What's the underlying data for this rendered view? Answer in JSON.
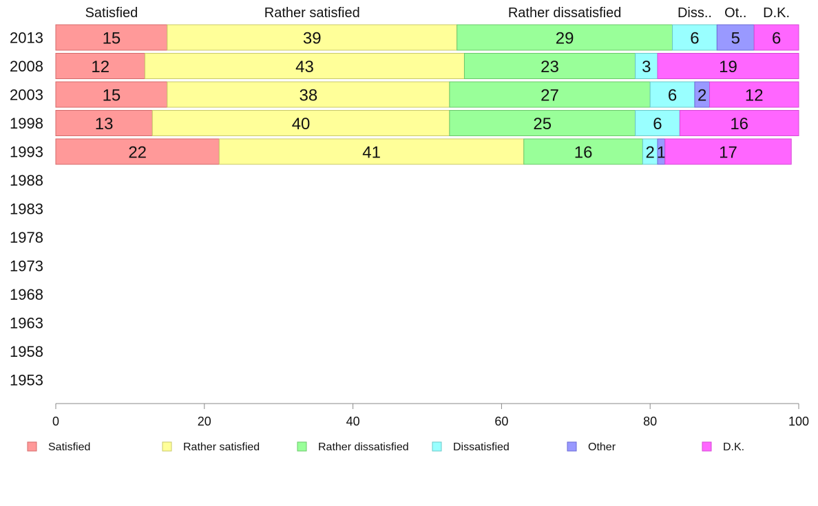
{
  "chart_data": {
    "type": "bar",
    "orientation": "horizontal-stacked-percent",
    "title": "",
    "xlabel": "",
    "ylabel": "",
    "xlim": [
      0,
      100
    ],
    "x_ticks": [
      "0",
      "20",
      "40",
      "60",
      "80",
      "100"
    ],
    "categories": [
      "2013",
      "2008",
      "2003",
      "1998",
      "1993",
      "1988",
      "1983",
      "1978",
      "1973",
      "1968",
      "1963",
      "1958",
      "1953"
    ],
    "column_headers": [
      "Satisfied",
      "Rather satisfied",
      "Rather dissatisfied",
      "Diss..",
      "Ot..",
      "D.K."
    ],
    "legend_position": "bottom",
    "grid": false,
    "series": [
      {
        "name": "Satisfied",
        "color": "#ff9999",
        "stroke": "#d46a6a",
        "values": [
          15,
          12,
          15,
          13,
          22,
          null,
          null,
          null,
          null,
          null,
          null,
          null,
          null
        ]
      },
      {
        "name": "Rather satisfied",
        "color": "#ffff99",
        "stroke": "#c8c86a",
        "values": [
          39,
          43,
          38,
          40,
          41,
          null,
          null,
          null,
          null,
          null,
          null,
          null,
          null
        ]
      },
      {
        "name": "Rather dissatisfied",
        "color": "#99ff99",
        "stroke": "#6ac86a",
        "values": [
          29,
          23,
          27,
          25,
          16,
          null,
          null,
          null,
          null,
          null,
          null,
          null,
          null
        ]
      },
      {
        "name": "Dissatisfied",
        "color": "#99ffff",
        "stroke": "#6ac8c8",
        "values": [
          6,
          3,
          6,
          6,
          2,
          null,
          null,
          null,
          null,
          null,
          null,
          null,
          null
        ]
      },
      {
        "name": "Other",
        "color": "#9999ff",
        "stroke": "#6a6ad4",
        "values": [
          5,
          0,
          2,
          0,
          1,
          null,
          null,
          null,
          null,
          null,
          null,
          null,
          null
        ]
      },
      {
        "name": "D.K.",
        "color": "#ff66ff",
        "stroke": "#d44ad4",
        "values": [
          6,
          19,
          12,
          16,
          17,
          null,
          null,
          null,
          null,
          null,
          null,
          null,
          null
        ]
      }
    ]
  }
}
